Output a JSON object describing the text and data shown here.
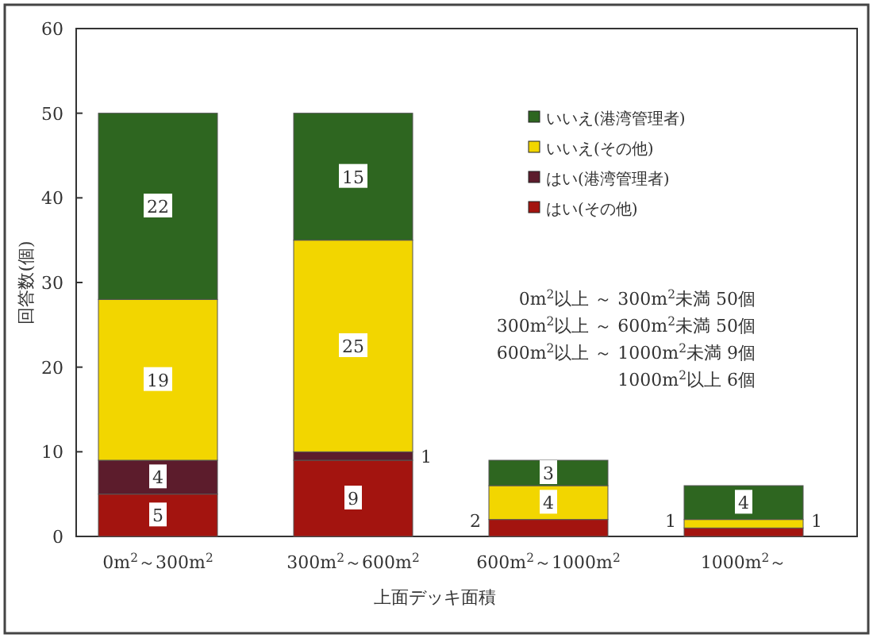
{
  "chart_data": {
    "type": "bar",
    "stacked": true,
    "xlabel": "上面デッキ面積",
    "ylabel": "回答数(個)",
    "categories": [
      "0m$^{2}$～300m$^{2}$",
      "300m$^{2}$～600m$^{2}$",
      "600m$^{2}$～1000m$^{2}$",
      "1000m$^{2}$～"
    ],
    "ylim": [
      0,
      60
    ],
    "yticks": [
      0,
      10,
      20,
      30,
      40,
      50,
      60
    ],
    "legend": "top right",
    "series": [
      {
        "name": "はい(その他)",
        "color": "#a3140f",
        "values": [
          5,
          9,
          2,
          1
        ],
        "value_labels": [
          "5",
          "9",
          "2",
          "1"
        ]
      },
      {
        "name": "はい(港湾管理者)",
        "color": "#5c1c2c",
        "values": [
          4,
          1,
          0,
          0
        ],
        "value_labels": [
          "4",
          "1",
          null,
          null
        ]
      },
      {
        "name": "いいえ(その他)",
        "color": "#f2d600",
        "values": [
          19,
          25,
          4,
          1
        ],
        "value_labels": [
          "19",
          "25",
          "4",
          "1"
        ]
      },
      {
        "name": "いいえ(港湾管理者)",
        "color": "#2e6620",
        "values": [
          22,
          15,
          3,
          4
        ],
        "value_labels": [
          "22",
          "15",
          "3",
          "4"
        ]
      }
    ],
    "annotations": [
      "0m$^{2}$以上 ～ 300m$^{2}$未満 50個",
      "300m$^{2}$以上 ～ 600m$^{2}$未満 50個",
      "600m$^{2}$以上 ～ 1000m$^{2}$未満 9個",
      "1000m$^{2}$以上 6個"
    ]
  }
}
